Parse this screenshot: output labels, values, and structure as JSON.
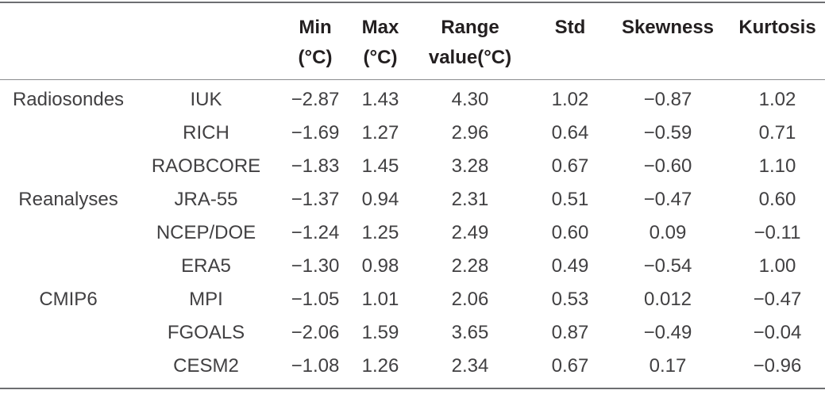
{
  "table": {
    "headers": [
      {
        "line1": "",
        "line2": ""
      },
      {
        "line1": "",
        "line2": ""
      },
      {
        "line1": "Min",
        "line2": "(°C)"
      },
      {
        "line1": "Max",
        "line2": "(°C)"
      },
      {
        "line1": "Range",
        "line2": "value(°C)"
      },
      {
        "line1": "Std",
        "line2": ""
      },
      {
        "line1": "Skewness",
        "line2": ""
      },
      {
        "line1": "Kurtosis",
        "line2": ""
      }
    ],
    "rows": [
      {
        "group": "Radiosondes",
        "dataset": "IUK",
        "min": "−2.87",
        "max": "1.43",
        "range": "4.30",
        "std": "1.02",
        "skewness": "−0.87",
        "kurtosis": "1.02"
      },
      {
        "group": "",
        "dataset": "RICH",
        "min": "−1.69",
        "max": "1.27",
        "range": "2.96",
        "std": "0.64",
        "skewness": "−0.59",
        "kurtosis": "0.71"
      },
      {
        "group": "",
        "dataset": "RAOBCORE",
        "min": "−1.83",
        "max": "1.45",
        "range": "3.28",
        "std": "0.67",
        "skewness": "−0.60",
        "kurtosis": "1.10"
      },
      {
        "group": "Reanalyses",
        "dataset": "JRA-55",
        "min": "−1.37",
        "max": "0.94",
        "range": "2.31",
        "std": "0.51",
        "skewness": "−0.47",
        "kurtosis": "0.60"
      },
      {
        "group": "",
        "dataset": "NCEP/DOE",
        "min": "−1.24",
        "max": "1.25",
        "range": "2.49",
        "std": "0.60",
        "skewness": "0.09",
        "kurtosis": "−0.11"
      },
      {
        "group": "",
        "dataset": "ERA5",
        "min": "−1.30",
        "max": "0.98",
        "range": "2.28",
        "std": "0.49",
        "skewness": "−0.54",
        "kurtosis": "1.00"
      },
      {
        "group": "CMIP6",
        "dataset": "MPI",
        "min": "−1.05",
        "max": "1.01",
        "range": "2.06",
        "std": "0.53",
        "skewness": "0.012",
        "kurtosis": "−0.47"
      },
      {
        "group": "",
        "dataset": "FGOALS",
        "min": "−2.06",
        "max": "1.59",
        "range": "3.65",
        "std": "0.87",
        "skewness": "−0.49",
        "kurtosis": "−0.04"
      },
      {
        "group": "",
        "dataset": "CESM2",
        "min": "−1.08",
        "max": "1.26",
        "range": "2.34",
        "std": "0.67",
        "skewness": "0.17",
        "kurtosis": "−0.96"
      }
    ]
  }
}
